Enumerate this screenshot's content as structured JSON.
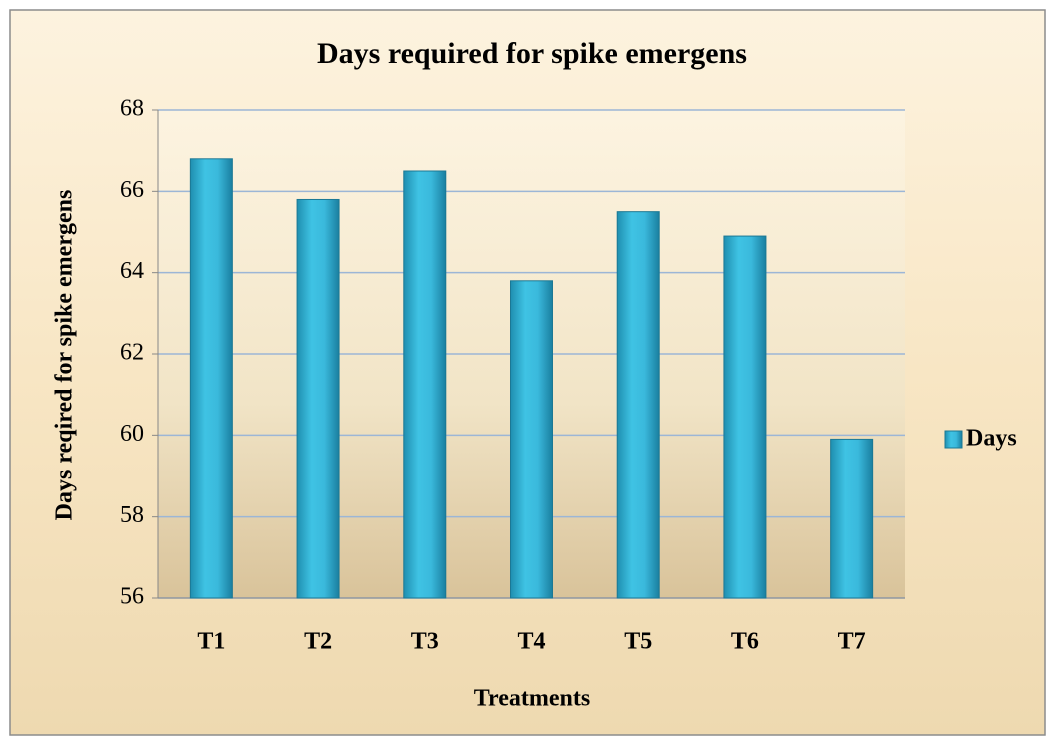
{
  "chart_data": {
    "type": "bar",
    "title": "Days required for spike emergens",
    "x_label": "Treatments",
    "y_label": "Days reqired for spike emergens",
    "categories": [
      "T1",
      "T2",
      "T3",
      "T4",
      "T5",
      "T6",
      "T7"
    ],
    "series": [
      {
        "name": "Days",
        "color": "#31b5d8",
        "values": [
          66.8,
          65.8,
          66.5,
          63.8,
          65.5,
          64.9,
          59.9
        ]
      }
    ],
    "ylim": [
      56,
      68
    ],
    "yticks": [
      56,
      58,
      60,
      62,
      64,
      66,
      68
    ],
    "grid": true,
    "legend": "right"
  }
}
